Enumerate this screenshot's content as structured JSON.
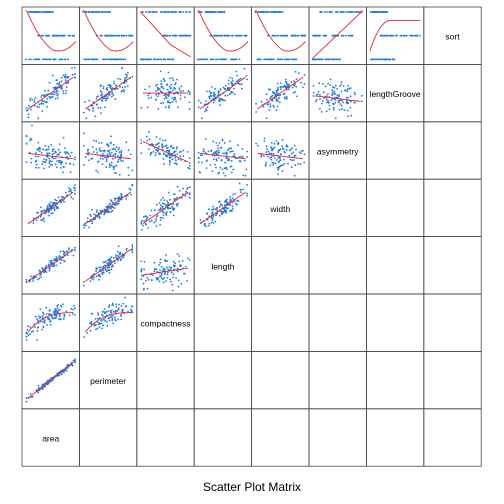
{
  "chart_data": {
    "type": "scatter",
    "title": "Scatter Plot Matrix",
    "variables": [
      "area",
      "perimeter",
      "compactness",
      "length",
      "width",
      "asymmetry",
      "lengthGroove",
      "sort"
    ],
    "panels": [
      {
        "row": "sort",
        "col": "area",
        "points": "three-level categorical bands",
        "smooth": "U-shaped"
      },
      {
        "row": "sort",
        "col": "perimeter",
        "points": "three-level categorical bands",
        "smooth": "U-shaped"
      },
      {
        "row": "sort",
        "col": "compactness",
        "points": "three-level categorical bands",
        "smooth": "decreasing"
      },
      {
        "row": "sort",
        "col": "length",
        "points": "three-level categorical bands",
        "smooth": "U-shaped"
      },
      {
        "row": "sort",
        "col": "width",
        "points": "three-level categorical bands",
        "smooth": "U-shaped"
      },
      {
        "row": "sort",
        "col": "asymmetry",
        "points": "three-level categorical bands",
        "smooth": "increasing"
      },
      {
        "row": "sort",
        "col": "lengthGroove",
        "points": "three-level categorical bands",
        "smooth": "increasing then flat"
      },
      {
        "row": "lengthGroove",
        "col": "area",
        "points": "positive",
        "smooth": "increasing"
      },
      {
        "row": "lengthGroove",
        "col": "perimeter",
        "points": "positive",
        "smooth": "increasing"
      },
      {
        "row": "lengthGroove",
        "col": "compactness",
        "points": "weak",
        "smooth": "flat"
      },
      {
        "row": "lengthGroove",
        "col": "length",
        "points": "positive",
        "smooth": "increasing"
      },
      {
        "row": "lengthGroove",
        "col": "width",
        "points": "positive",
        "smooth": "increasing"
      },
      {
        "row": "lengthGroove",
        "col": "asymmetry",
        "points": "weak",
        "smooth": "slight decrease"
      },
      {
        "row": "asymmetry",
        "col": "area",
        "points": "scattered",
        "smooth": "slight decrease"
      },
      {
        "row": "asymmetry",
        "col": "perimeter",
        "points": "scattered",
        "smooth": "slight decrease"
      },
      {
        "row": "asymmetry",
        "col": "compactness",
        "points": "negative",
        "smooth": "decreasing"
      },
      {
        "row": "asymmetry",
        "col": "length",
        "points": "scattered",
        "smooth": "slight decrease"
      },
      {
        "row": "asymmetry",
        "col": "width",
        "points": "scattered",
        "smooth": "slight decrease"
      },
      {
        "row": "width",
        "col": "area",
        "points": "strong positive",
        "smooth": "increasing"
      },
      {
        "row": "width",
        "col": "perimeter",
        "points": "strong positive",
        "smooth": "increasing"
      },
      {
        "row": "width",
        "col": "compactness",
        "points": "positive",
        "smooth": "increasing"
      },
      {
        "row": "width",
        "col": "length",
        "points": "positive",
        "smooth": "increasing"
      },
      {
        "row": "length",
        "col": "area",
        "points": "strong positive",
        "smooth": "increasing"
      },
      {
        "row": "length",
        "col": "perimeter",
        "points": "strong positive",
        "smooth": "increasing"
      },
      {
        "row": "length",
        "col": "compactness",
        "points": "weak",
        "smooth": "slight increase"
      },
      {
        "row": "compactness",
        "col": "area",
        "points": "positive",
        "smooth": "increasing then flat"
      },
      {
        "row": "compactness",
        "col": "perimeter",
        "points": "positive",
        "smooth": "increasing then flat"
      },
      {
        "row": "perimeter",
        "col": "area",
        "points": "near-linear",
        "smooth": "linear"
      }
    ],
    "point_color": "#1e7be0",
    "smooth_color": "#e8222a",
    "grid": false,
    "axes": false
  }
}
